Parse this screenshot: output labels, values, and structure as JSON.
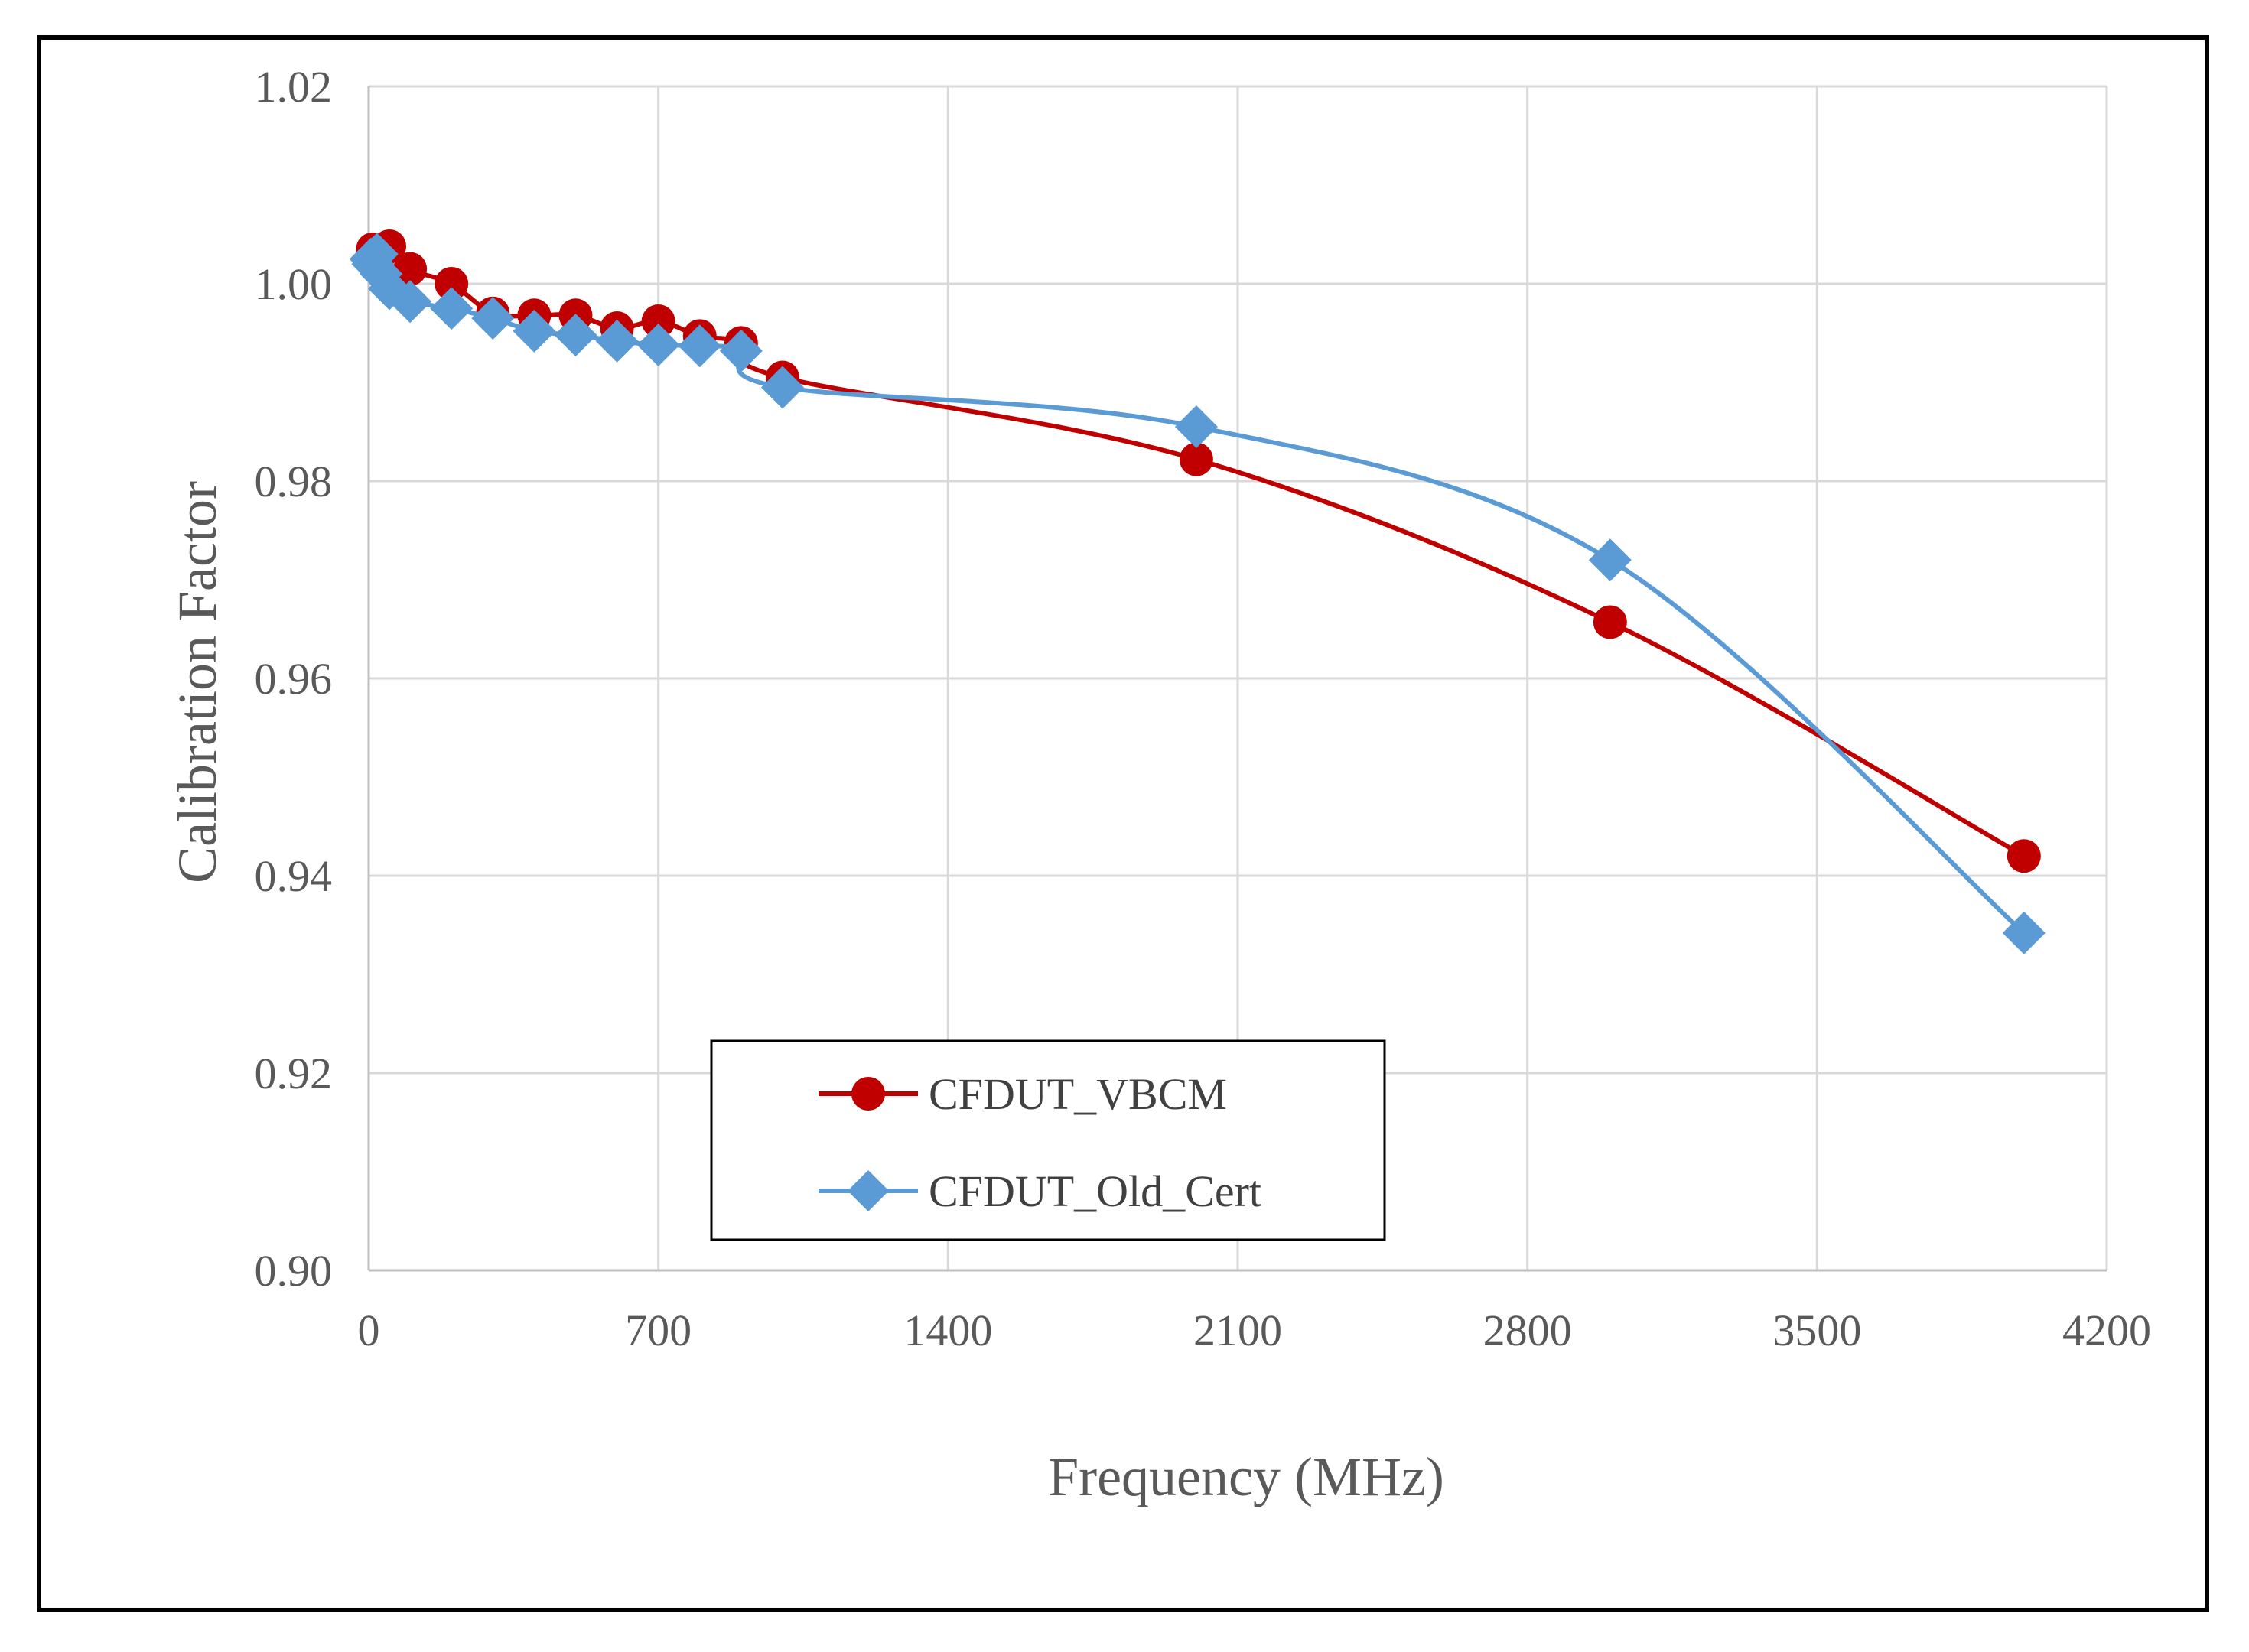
{
  "chart_data": {
    "type": "line",
    "title": "",
    "xlabel": "Frequency (MHz)",
    "ylabel": "Calibration Factor",
    "xlim": [
      0,
      4200
    ],
    "ylim": [
      0.9,
      1.02
    ],
    "xticks": [
      0,
      700,
      1400,
      2100,
      2800,
      3500,
      4200
    ],
    "xtick_labels": [
      "0",
      "700",
      "1400",
      "2100",
      "2800",
      "3500",
      "4200"
    ],
    "yticks": [
      0.9,
      0.92,
      0.94,
      0.96,
      0.98,
      1.0,
      1.02
    ],
    "ytick_labels": [
      "0.90",
      "0.92",
      "0.94",
      "0.96",
      "0.98",
      "1.00",
      "1.02"
    ],
    "grid": true,
    "smooth": true,
    "legend_position": "bottom-center",
    "series": [
      {
        "name": "CFDUT_VBCM",
        "color": "#C00000",
        "marker": "circle",
        "x": [
          10,
          30,
          50,
          100,
          200,
          300,
          400,
          500,
          600,
          700,
          800,
          900,
          1000,
          2000,
          3000,
          4000
        ],
        "y": [
          1.0035,
          1.0032,
          1.0038,
          1.0015,
          1.0,
          0.997,
          0.9968,
          0.9968,
          0.9955,
          0.9962,
          0.9947,
          0.994,
          0.9905,
          0.9822,
          0.9657,
          0.942
        ]
      },
      {
        "name": "CFDUT_Old_Cert",
        "color": "#5B9BD5",
        "marker": "diamond",
        "x": [
          5,
          10,
          20,
          30,
          50,
          100,
          200,
          300,
          400,
          500,
          600,
          700,
          800,
          900,
          1000,
          2000,
          3000,
          4000
        ],
        "y": [
          1.0025,
          1.002,
          1.003,
          1.001,
          0.9995,
          0.9982,
          0.9975,
          0.9965,
          0.9952,
          0.9948,
          0.9942,
          0.9938,
          0.9937,
          0.9932,
          0.9895,
          0.9855,
          0.972,
          0.9342
        ]
      }
    ]
  }
}
